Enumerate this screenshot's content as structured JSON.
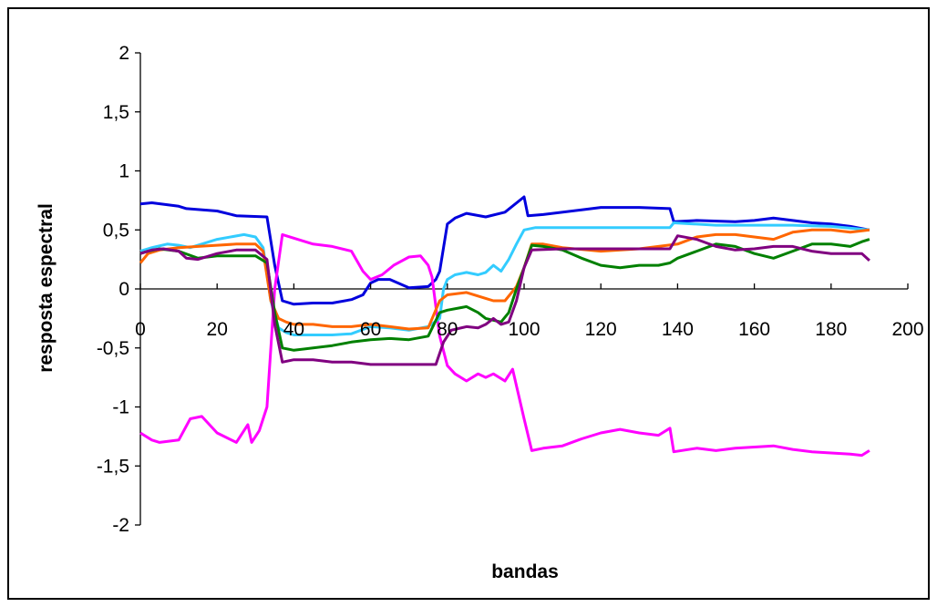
{
  "chart_data": {
    "type": "line",
    "title": "",
    "xlabel": "bandas",
    "ylabel": "resposta espectral",
    "xlim": [
      0,
      200
    ],
    "ylim": [
      -2,
      2
    ],
    "x_ticks": [
      0,
      20,
      40,
      60,
      80,
      100,
      120,
      140,
      160,
      180,
      200
    ],
    "x_tick_labels": [
      "0",
      "20",
      "40",
      "60",
      "80",
      "100",
      "120",
      "140",
      "160",
      "180",
      "200"
    ],
    "y_ticks": [
      -2,
      -1.5,
      -1,
      -0.5,
      0,
      0.5,
      1,
      1.5,
      2
    ],
    "y_tick_labels": [
      "-2",
      "-1,5",
      "-1",
      "-0,5",
      "0",
      "0,5",
      "1",
      "1,5",
      "2"
    ],
    "grid": false,
    "legend": "none",
    "series": [
      {
        "color": "#0000dd",
        "x": [
          0,
          3,
          10,
          12,
          20,
          25,
          33,
          35,
          37,
          40,
          45,
          50,
          55,
          58,
          60,
          62,
          65,
          70,
          75,
          77,
          78,
          80,
          82,
          85,
          90,
          95,
          100,
          101,
          105,
          115,
          120,
          130,
          138,
          139,
          145,
          155,
          160,
          165,
          170,
          175,
          180,
          185,
          190
        ],
        "y": [
          0.72,
          0.73,
          0.7,
          0.68,
          0.66,
          0.62,
          0.61,
          0.2,
          -0.1,
          -0.13,
          -0.12,
          -0.12,
          -0.09,
          -0.05,
          0.05,
          0.08,
          0.08,
          0.01,
          0.02,
          0.08,
          0.15,
          0.55,
          0.6,
          0.64,
          0.61,
          0.65,
          0.78,
          0.62,
          0.63,
          0.67,
          0.69,
          0.69,
          0.68,
          0.57,
          0.58,
          0.57,
          0.58,
          0.6,
          0.58,
          0.56,
          0.55,
          0.53,
          0.5
        ]
      },
      {
        "color": "#ff00ff",
        "x": [
          0,
          3,
          5,
          10,
          13,
          16,
          20,
          25,
          28,
          29,
          31,
          33,
          35,
          37,
          40,
          45,
          50,
          55,
          58,
          60,
          63,
          66,
          70,
          73,
          75,
          76,
          78,
          80,
          82,
          85,
          88,
          90,
          92,
          95,
          97,
          100,
          102,
          105,
          110,
          115,
          120,
          125,
          130,
          135,
          138,
          139,
          145,
          150,
          155,
          160,
          165,
          170,
          175,
          180,
          185,
          188,
          190
        ],
        "y": [
          -1.22,
          -1.28,
          -1.3,
          -1.28,
          -1.1,
          -1.08,
          -1.22,
          -1.3,
          -1.15,
          -1.3,
          -1.2,
          -1.0,
          0.0,
          0.46,
          0.43,
          0.38,
          0.36,
          0.32,
          0.15,
          0.08,
          0.12,
          0.2,
          0.27,
          0.28,
          0.2,
          0.1,
          -0.4,
          -0.65,
          -0.72,
          -0.78,
          -0.72,
          -0.75,
          -0.72,
          -0.78,
          -0.68,
          -1.1,
          -1.37,
          -1.35,
          -1.33,
          -1.27,
          -1.22,
          -1.19,
          -1.22,
          -1.24,
          -1.18,
          -1.38,
          -1.35,
          -1.37,
          -1.35,
          -1.34,
          -1.33,
          -1.36,
          -1.38,
          -1.39,
          -1.4,
          -1.41,
          -1.37
        ]
      },
      {
        "color": "#33ccff",
        "x": [
          0,
          3,
          7,
          10,
          13,
          20,
          27,
          30,
          32,
          34,
          36,
          38,
          40,
          45,
          50,
          55,
          60,
          65,
          70,
          75,
          78,
          79,
          80,
          82,
          85,
          88,
          90,
          92,
          94,
          96,
          98,
          100,
          103,
          110,
          120,
          130,
          138,
          139,
          150,
          160,
          170,
          180,
          190
        ],
        "y": [
          0.32,
          0.35,
          0.38,
          0.37,
          0.35,
          0.42,
          0.46,
          0.44,
          0.35,
          -0.1,
          -0.33,
          -0.37,
          -0.39,
          -0.39,
          -0.39,
          -0.38,
          -0.32,
          -0.33,
          -0.35,
          -0.32,
          -0.25,
          0.0,
          0.08,
          0.12,
          0.14,
          0.12,
          0.14,
          0.2,
          0.15,
          0.25,
          0.38,
          0.5,
          0.52,
          0.52,
          0.52,
          0.52,
          0.52,
          0.56,
          0.54,
          0.54,
          0.54,
          0.53,
          0.5
        ]
      },
      {
        "color": "#ff6600",
        "x": [
          0,
          2,
          5,
          10,
          15,
          20,
          25,
          30,
          32,
          34,
          36,
          38,
          40,
          45,
          50,
          55,
          60,
          65,
          70,
          75,
          78,
          80,
          85,
          90,
          92,
          95,
          98,
          100,
          102,
          105,
          110,
          120,
          130,
          140,
          145,
          150,
          155,
          160,
          165,
          170,
          175,
          180,
          185,
          190
        ],
        "y": [
          0.22,
          0.3,
          0.33,
          0.35,
          0.36,
          0.37,
          0.38,
          0.38,
          0.32,
          -0.1,
          -0.25,
          -0.28,
          -0.3,
          -0.3,
          -0.32,
          -0.32,
          -0.3,
          -0.32,
          -0.34,
          -0.33,
          -0.1,
          -0.05,
          -0.03,
          -0.08,
          -0.1,
          -0.1,
          0.02,
          0.18,
          0.38,
          0.38,
          0.35,
          0.32,
          0.34,
          0.38,
          0.44,
          0.46,
          0.46,
          0.44,
          0.42,
          0.48,
          0.5,
          0.5,
          0.48,
          0.5
        ]
      },
      {
        "color": "#008000",
        "x": [
          0,
          2,
          5,
          10,
          15,
          20,
          25,
          30,
          33,
          35,
          37,
          40,
          45,
          50,
          55,
          60,
          65,
          70,
          75,
          78,
          80,
          85,
          88,
          90,
          94,
          96,
          98,
          100,
          102,
          105,
          110,
          115,
          120,
          125,
          130,
          135,
          138,
          140,
          145,
          150,
          155,
          160,
          165,
          170,
          175,
          180,
          185,
          188,
          190
        ],
        "y": [
          0.3,
          0.32,
          0.34,
          0.32,
          0.26,
          0.28,
          0.28,
          0.28,
          0.22,
          -0.2,
          -0.5,
          -0.52,
          -0.5,
          -0.48,
          -0.45,
          -0.43,
          -0.42,
          -0.43,
          -0.4,
          -0.2,
          -0.18,
          -0.15,
          -0.2,
          -0.25,
          -0.28,
          -0.2,
          0.0,
          0.18,
          0.37,
          0.36,
          0.33,
          0.26,
          0.2,
          0.18,
          0.2,
          0.2,
          0.22,
          0.26,
          0.32,
          0.38,
          0.36,
          0.3,
          0.26,
          0.32,
          0.38,
          0.38,
          0.36,
          0.4,
          0.42
        ]
      },
      {
        "color": "#800080",
        "x": [
          0,
          3,
          6,
          10,
          12,
          15,
          20,
          25,
          30,
          33,
          35,
          37,
          40,
          45,
          50,
          55,
          60,
          65,
          70,
          74,
          77,
          79,
          81,
          85,
          88,
          90,
          92,
          94,
          96,
          98,
          100,
          102,
          110,
          120,
          130,
          138,
          140,
          145,
          150,
          155,
          160,
          165,
          170,
          175,
          180,
          185,
          188,
          190
        ],
        "y": [
          0.3,
          0.33,
          0.34,
          0.32,
          0.26,
          0.25,
          0.3,
          0.33,
          0.33,
          0.25,
          -0.3,
          -0.62,
          -0.6,
          -0.6,
          -0.62,
          -0.62,
          -0.64,
          -0.64,
          -0.64,
          -0.64,
          -0.64,
          -0.45,
          -0.35,
          -0.32,
          -0.33,
          -0.3,
          -0.25,
          -0.3,
          -0.28,
          -0.1,
          0.18,
          0.33,
          0.34,
          0.34,
          0.34,
          0.34,
          0.45,
          0.42,
          0.36,
          0.33,
          0.34,
          0.36,
          0.36,
          0.32,
          0.3,
          0.3,
          0.3,
          0.24
        ]
      }
    ]
  }
}
